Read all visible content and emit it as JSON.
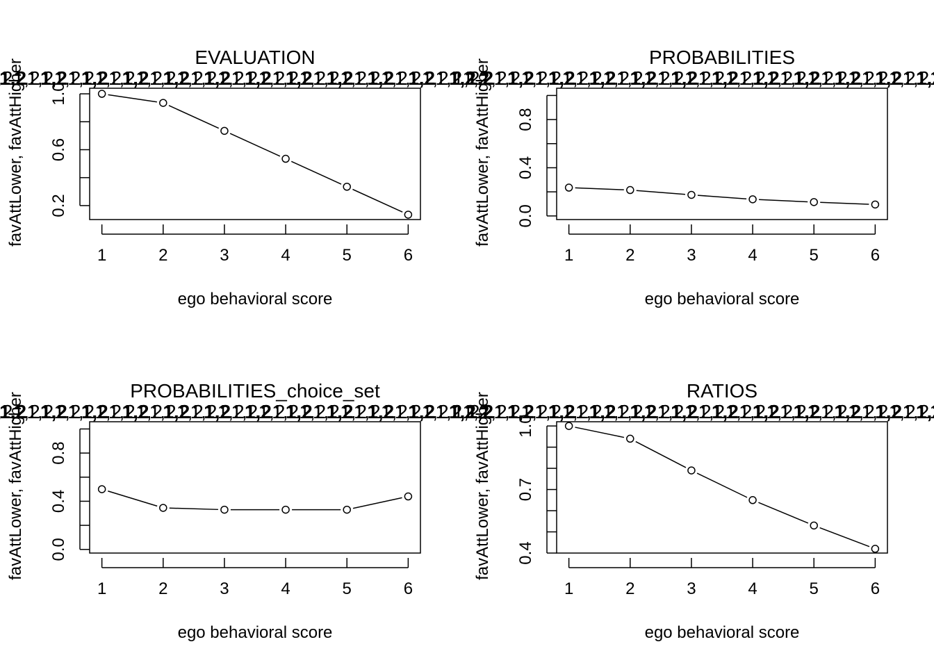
{
  "chart_data": [
    {
      "type": "line",
      "title": "EVALUATION",
      "xlabel": "ego behavioral score",
      "ylabel": "favAttLower, favAttHigher",
      "x": [
        1,
        2,
        3,
        4,
        5,
        6
      ],
      "values": [
        1.0,
        0.935,
        0.735,
        0.535,
        0.335,
        0.135
      ],
      "xlim": [
        0.8,
        6.2
      ],
      "ylim": [
        0.1,
        1.04
      ],
      "x_ticks": [
        1,
        2,
        3,
        4,
        5,
        6
      ],
      "x_tick_labels": [
        "1",
        "2",
        "3",
        "4",
        "5",
        "6"
      ],
      "y_ticks": [
        0.2,
        0.4,
        0.6,
        0.8,
        1.0
      ],
      "y_tick_labels": [
        "0.2",
        "",
        "0.6",
        "",
        "1.0"
      ],
      "top_axis_labels": [
        "1,2",
        "1,2",
        "1,2",
        "1,2",
        "1,2",
        "1,2",
        "1,2",
        "1,2",
        "1,2",
        "1,2",
        "1,2",
        "1,2",
        "1,2",
        "1,2",
        "1,2",
        "1,2",
        "1,2",
        "1,2",
        "1,2",
        "1,2",
        "1,2",
        "1,2",
        "1,2",
        "1,2",
        "1,2",
        "1,2",
        "1,2",
        "1,2",
        "1,2",
        "1,2",
        "1,2",
        "1,2",
        "1,2",
        "1,2",
        "1,2",
        "1,2"
      ],
      "grid": false,
      "legend": "none"
    },
    {
      "type": "line",
      "title": "PROBABILITIES",
      "xlabel": "ego behavioral score",
      "ylabel": "favAttLower, favAttHigher",
      "x": [
        1,
        2,
        3,
        4,
        5,
        6
      ],
      "values": [
        0.235,
        0.215,
        0.175,
        0.138,
        0.115,
        0.095
      ],
      "xlim": [
        0.8,
        6.2
      ],
      "ylim": [
        -0.03,
        1.06
      ],
      "x_ticks": [
        1,
        2,
        3,
        4,
        5,
        6
      ],
      "x_tick_labels": [
        "1",
        "2",
        "3",
        "4",
        "5",
        "6"
      ],
      "y_ticks": [
        0.0,
        0.2,
        0.4,
        0.6,
        0.8,
        1.0
      ],
      "y_tick_labels": [
        "0.0",
        "",
        "0.4",
        "",
        "0.8",
        ""
      ],
      "top_axis_labels": [
        "1,2",
        "1,2",
        "1,2",
        "1,2",
        "1,2",
        "1,2",
        "1,2",
        "1,2",
        "1,2",
        "1,2",
        "1,2",
        "1,2",
        "1,2",
        "1,2",
        "1,2",
        "1,2",
        "1,2",
        "1,2",
        "1,2",
        "1,2",
        "1,2",
        "1,2",
        "1,2",
        "1,2",
        "1,2",
        "1,2",
        "1,2",
        "1,2",
        "1,2",
        "1,2",
        "1,2",
        "1,2",
        "1,2",
        "1,2",
        "1,2",
        "1,2"
      ],
      "grid": false,
      "legend": "none"
    },
    {
      "type": "line",
      "title": "PROBABILITIES_choice_set",
      "xlabel": "ego behavioral score",
      "ylabel": "favAttLower, favAttHigher",
      "x": [
        1,
        2,
        3,
        4,
        5,
        6
      ],
      "values": [
        0.5,
        0.345,
        0.33,
        0.33,
        0.33,
        0.44
      ],
      "xlim": [
        0.8,
        6.2
      ],
      "ylim": [
        -0.03,
        1.06
      ],
      "x_ticks": [
        1,
        2,
        3,
        4,
        5,
        6
      ],
      "x_tick_labels": [
        "1",
        "2",
        "3",
        "4",
        "5",
        "6"
      ],
      "y_ticks": [
        0.0,
        0.2,
        0.4,
        0.6,
        0.8,
        1.0
      ],
      "y_tick_labels": [
        "0.0",
        "",
        "0.4",
        "",
        "0.8",
        ""
      ],
      "top_axis_labels": [
        "1,2",
        "1,2",
        "1,2",
        "1,2",
        "1,2",
        "1,2",
        "1,2",
        "1,2",
        "1,2",
        "1,2",
        "1,2",
        "1,2",
        "1,2",
        "1,2",
        "1,2",
        "1,2",
        "1,2",
        "1,2",
        "1,2",
        "1,2",
        "1,2",
        "1,2",
        "1,2",
        "1,2",
        "1,2",
        "1,2",
        "1,2",
        "1,2",
        "1,2",
        "1,2",
        "1,2",
        "1,2",
        "1,2",
        "1,2",
        "1,2",
        "1,2"
      ],
      "grid": false,
      "legend": "none"
    },
    {
      "type": "line",
      "title": "RATIOS",
      "xlabel": "ego behavioral score",
      "ylabel": "favAttLower, favAttHigher",
      "x": [
        1,
        2,
        3,
        4,
        5,
        6
      ],
      "values": [
        1.0,
        0.94,
        0.79,
        0.65,
        0.53,
        0.42
      ],
      "xlim": [
        0.8,
        6.2
      ],
      "ylim": [
        0.4,
        1.02
      ],
      "x_ticks": [
        1,
        2,
        3,
        4,
        5,
        6
      ],
      "x_tick_labels": [
        "1",
        "2",
        "3",
        "4",
        "5",
        "6"
      ],
      "y_ticks": [
        0.4,
        0.5,
        0.6,
        0.7,
        0.8,
        0.9,
        1.0
      ],
      "y_tick_labels": [
        "0.4",
        "",
        "",
        "0.7",
        "",
        "",
        "1.0"
      ],
      "top_axis_labels": [
        "1,2",
        "1,2",
        "1,2",
        "1,2",
        "1,2",
        "1,2",
        "1,2",
        "1,2",
        "1,2",
        "1,2",
        "1,2",
        "1,2",
        "1,2",
        "1,2",
        "1,2",
        "1,2",
        "1,2",
        "1,2",
        "1,2",
        "1,2",
        "1,2",
        "1,2",
        "1,2",
        "1,2",
        "1,2",
        "1,2",
        "1,2",
        "1,2",
        "1,2",
        "1,2",
        "1,2",
        "1,2",
        "1,2",
        "1,2",
        "1,2",
        "1,2"
      ],
      "grid": false,
      "legend": "none"
    }
  ]
}
